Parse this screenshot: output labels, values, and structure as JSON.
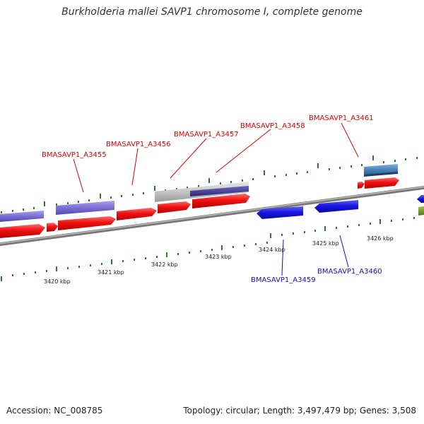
{
  "title": "Burkholderia mallei SAVP1 chromosome I, complete genome",
  "footer": {
    "accession": "Accession: NC_008785",
    "topology": "Topology: circular; Length: 3,497,479 bp; Genes: 3,508"
  },
  "colors": {
    "forward_cds": "#ee1111",
    "reverse_cds": "#1515dd",
    "purple_feature": "#7b6fd6",
    "gray_feature": "#bdbdbd",
    "steel_feature": "#4a82b8",
    "olive_feature": "#6e8a2a",
    "backbone": "#888888",
    "tick": "#2a7a2a",
    "forward_label": "#dd0000",
    "reverse_label": "#1010bb"
  },
  "scale_labels": [
    "3420 kbp",
    "3421 kbp",
    "3422 kbp",
    "3423 kbp",
    "3424 kbp",
    "3425 kbp",
    "3426 kbp"
  ],
  "forward_genes": [
    "BMASAVP1_A3455",
    "BMASAVP1_A3456",
    "BMASAVP1_A3457",
    "BMASAVP1_A3458",
    "BMASAVP1_A3461"
  ],
  "reverse_genes": [
    "BMASAVP1_A3459",
    "BMASAVP1_A3460"
  ]
}
